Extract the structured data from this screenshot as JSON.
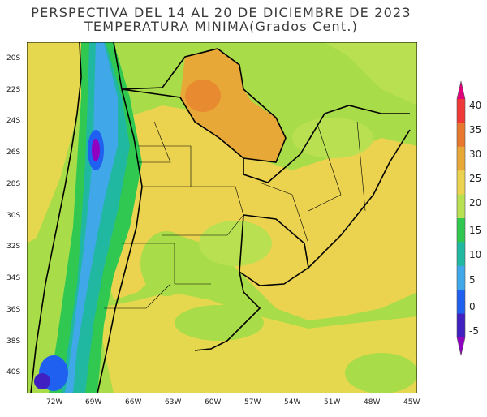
{
  "title": {
    "line1": "PERSPECTIVA DEL 14 AL 20 DE DICIEMBRE DE 2023",
    "line2": "TEMPERATURA MINIMA(Grados Cent.)"
  },
  "map": {
    "lat_labels": [
      "20S",
      "22S",
      "24S",
      "26S",
      "28S",
      "30S",
      "32S",
      "34S",
      "36S",
      "38S",
      "40S"
    ],
    "lon_labels": [
      "72W",
      "69W",
      "66W",
      "63W",
      "60W",
      "57W",
      "54W",
      "51W",
      "48W",
      "45W"
    ]
  },
  "colorbar": {
    "labels": [
      "40",
      "35",
      "30",
      "25",
      "20",
      "15",
      "10",
      "5",
      "0",
      "-5"
    ],
    "colors": [
      "#e0007a",
      "#f03838",
      "#e87830",
      "#e8a838",
      "#ebd350",
      "#b8e050",
      "#30c850",
      "#20b8a0",
      "#40a8e8",
      "#2060f0",
      "#4020c0",
      "#9000c0"
    ]
  },
  "colors": {
    "ocean_pacific": "#e8d850",
    "ocean_atlantic_south": "#a8dc48",
    "boundary": "#000000"
  }
}
